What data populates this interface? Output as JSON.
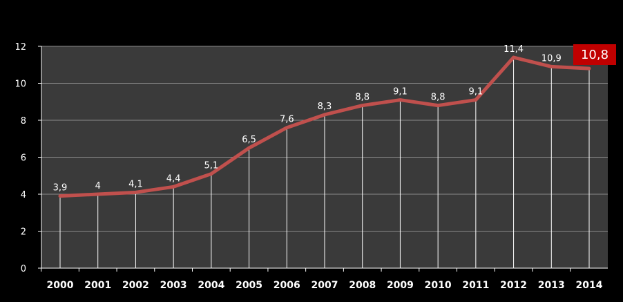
{
  "chart_data": {
    "type": "line",
    "title": "",
    "xlabel": "",
    "ylabel": "",
    "categories": [
      "2000",
      "2001",
      "2002",
      "2003",
      "2004",
      "2005",
      "2006",
      "2007",
      "2008",
      "2009",
      "2010",
      "2011",
      "2012",
      "2013",
      "2014"
    ],
    "series": [
      {
        "values": [
          3.9,
          4,
          4.1,
          4.4,
          5.1,
          6.5,
          7.6,
          8.3,
          8.8,
          9.1,
          8.8,
          9.1,
          11.4,
          10.9,
          10.8
        ],
        "labels": [
          "3,9",
          "4",
          "4,1",
          "4,4",
          "5,1",
          "6,5",
          "7,6",
          "8,3",
          "8,8",
          "9,1",
          "8,8",
          "9,1",
          "11,4",
          "10,9",
          "10,8"
        ]
      }
    ],
    "ylim": [
      0,
      12
    ],
    "yticks": [
      "0",
      "2",
      "4",
      "6",
      "8",
      "10",
      "12"
    ],
    "grid": true,
    "highlight_last": true,
    "colors": {
      "background": "#000000",
      "plot_area": "#3a3a3a",
      "line": "#c0504d",
      "highlight_box": "#c00000",
      "text": "#ffffff",
      "gridline": "#8a8a8a"
    }
  }
}
